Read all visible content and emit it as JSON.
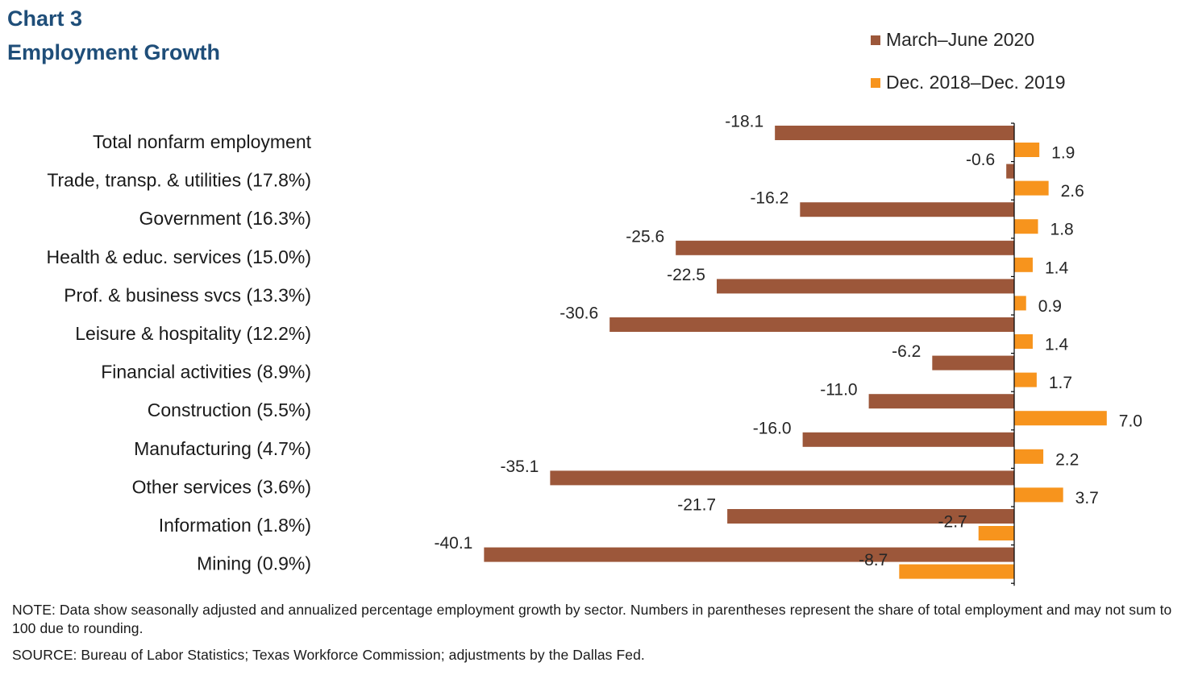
{
  "header": {
    "line1": "Chart 3",
    "line2": "Employment Growth"
  },
  "colors": {
    "title": "#1f4e79",
    "series1": "#9c573a",
    "series2": "#f7941d"
  },
  "chart_data": {
    "type": "bar",
    "orientation": "horizontal",
    "categories": [
      "Total nonfarm employment",
      "Trade, transp. & utilities (17.8%)",
      "Government (16.3%)",
      "Health & educ. services (15.0%)",
      "Prof. & business svcs (13.3%)",
      "Leisure & hospitality (12.2%)",
      "Financial activities (8.9%)",
      "Construction (5.5%)",
      "Manufacturing (4.7%)",
      "Other services (3.6%)",
      "Information (1.8%)",
      "Mining (0.9%)"
    ],
    "series": [
      {
        "name": "March–June 2020",
        "values": [
          -18.1,
          -0.6,
          -16.2,
          -25.6,
          -22.5,
          -30.6,
          -6.2,
          -11.0,
          -16.0,
          -35.1,
          -21.7,
          -40.1
        ],
        "labels": [
          "-18.1",
          "-0.6",
          "-16.2",
          "-25.6",
          "-22.5",
          "-30.6",
          "-6.2",
          "-11.0",
          "-16.0",
          "-35.1",
          "-21.7",
          "-40.1"
        ]
      },
      {
        "name": "Dec. 2018–Dec. 2019",
        "values": [
          1.9,
          2.6,
          1.8,
          1.4,
          0.9,
          1.4,
          1.7,
          7.0,
          2.2,
          3.7,
          -2.7,
          -8.7
        ],
        "labels": [
          "1.9",
          "2.6",
          "1.8",
          "1.4",
          "0.9",
          "1.4",
          "1.7",
          "7.0",
          "2.2",
          "3.7",
          "-2.7",
          "-8.7"
        ]
      }
    ],
    "legend": "top-right",
    "grid": false
  },
  "footer": {
    "note": "NOTE: Data show seasonally adjusted and annualized percentage employment growth by sector. Numbers in parentheses represent the share of total employment and may not sum to 100 due to rounding.",
    "source": "SOURCE: Bureau of Labor Statistics; Texas Workforce Commission; adjustments by the Dallas Fed."
  }
}
